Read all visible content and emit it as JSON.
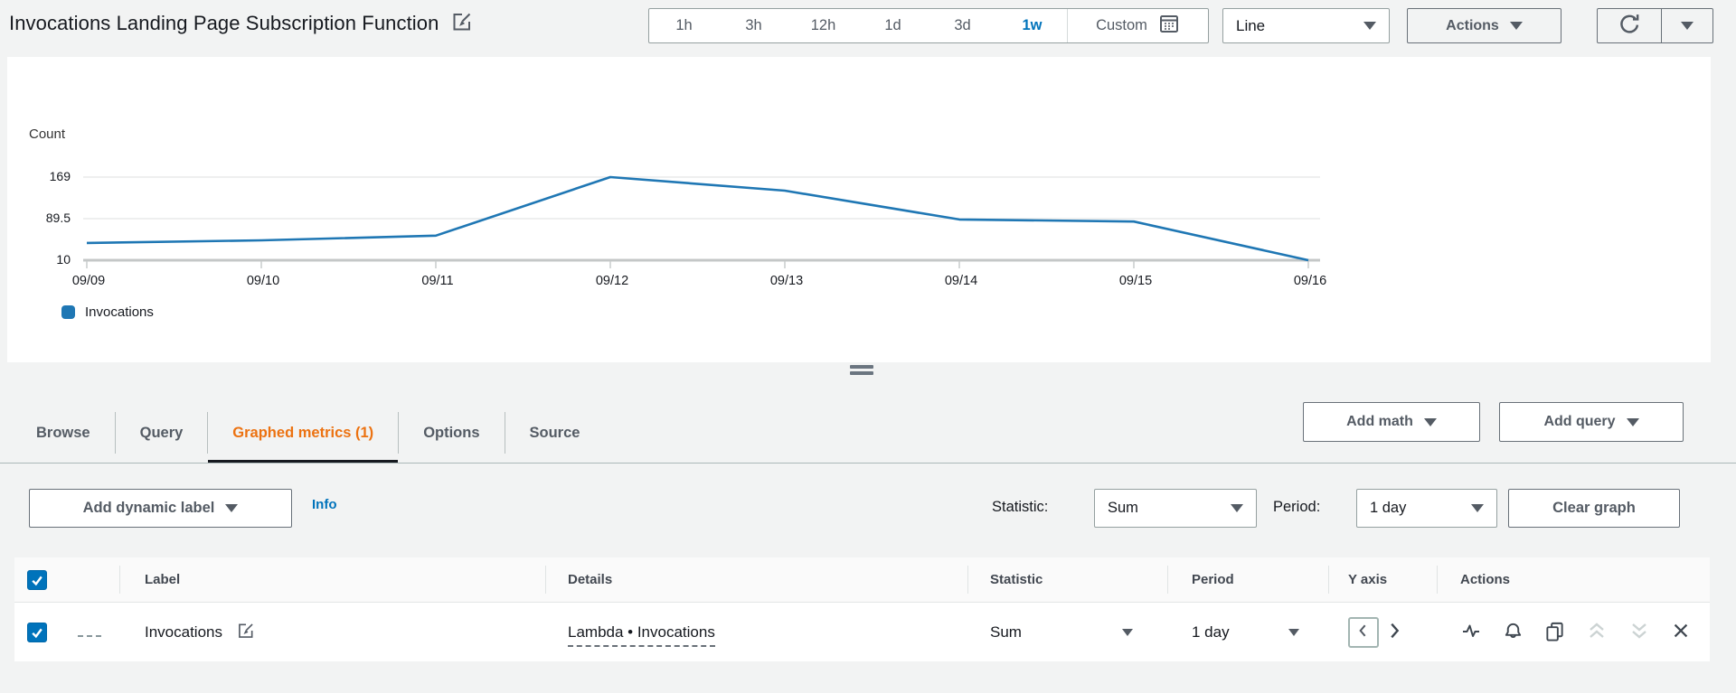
{
  "colors": {
    "accent_blue": "#0073bb",
    "active_tab_orange": "#ec7211",
    "chart_line": "#1f77b4",
    "metric_swatch": "#1f77b4"
  },
  "header": {
    "title": "Invocations Landing Page Subscription Function",
    "time_ranges": [
      "1h",
      "3h",
      "12h",
      "1d",
      "3d",
      "1w"
    ],
    "selected_range": "1w",
    "custom": "Custom",
    "line_type": "Line",
    "actions": "Actions"
  },
  "icons": {
    "edit": "pencil-in-square",
    "calendar": "calendar-grid",
    "refresh": "circular-arrow",
    "caret": "filled-down-triangle",
    "pulse": "sparkline-pulse",
    "alarm": "bell",
    "duplicate": "overlapping-rectangles",
    "move_up": "double-chevron-up",
    "move_down": "double-chevron-down",
    "remove": "x-cross",
    "y_axis_left": "chevron-left",
    "y_axis_right": "chevron-right"
  },
  "chart_data": {
    "type": "line",
    "ylabel": "Count",
    "x": [
      "09/09",
      "09/10",
      "09/11",
      "09/12",
      "09/13",
      "09/14",
      "09/15",
      "09/16"
    ],
    "series": [
      {
        "name": "Invocations",
        "values": [
          43,
          48,
          57,
          169,
          143,
          88,
          84,
          10
        ]
      }
    ],
    "yticks": [
      "169",
      "89.5",
      "10"
    ],
    "ylim": [
      10,
      169
    ],
    "grid": true,
    "legend_position": "bottom-left",
    "line_color": "#1f77b4"
  },
  "tabs": [
    {
      "label": "Browse",
      "active": false
    },
    {
      "label": "Query",
      "active": false
    },
    {
      "label": "Graphed metrics (1)",
      "active": true
    },
    {
      "label": "Options",
      "active": false
    },
    {
      "label": "Source",
      "active": false
    }
  ],
  "toolbar": {
    "add_math": "Add math",
    "add_query": "Add query",
    "add_dynamic_label": "Add dynamic label",
    "info": "Info",
    "statistic_label": "Statistic:",
    "statistic_value": "Sum",
    "period_label": "Period:",
    "period_value": "1 day",
    "clear_graph": "Clear graph"
  },
  "table": {
    "headers": [
      "Label",
      "Details",
      "Statistic",
      "Period",
      "Y axis",
      "Actions"
    ],
    "rows": [
      {
        "label": "Invocations",
        "details": "Lambda • Invocations",
        "statistic": "Sum",
        "period": "1 day",
        "selected": true
      }
    ]
  }
}
